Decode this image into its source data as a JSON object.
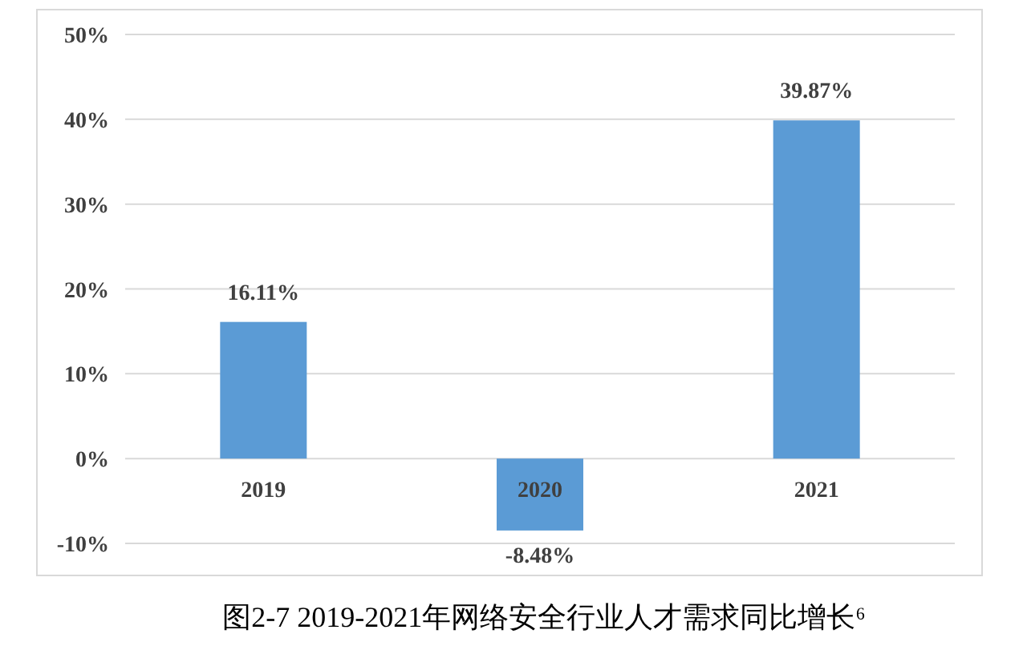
{
  "chart_data": {
    "type": "bar",
    "title": "图2-7 2019-2021年网络安全行业人才需求同比增长⁶",
    "categories": [
      "2019",
      "2020",
      "2021"
    ],
    "values": [
      16.11,
      -8.48,
      39.87
    ],
    "value_labels": [
      "16.11%",
      "-8.48%",
      "39.87%"
    ],
    "color": "#5b9bd5",
    "ylim": [
      -10,
      50
    ],
    "yticks": [
      {
        "value": -10,
        "label": "-10%"
      },
      {
        "value": 0,
        "label": "0%"
      },
      {
        "value": 10,
        "label": "10%"
      },
      {
        "value": 20,
        "label": "20%"
      },
      {
        "value": 30,
        "label": "30%"
      },
      {
        "value": 40,
        "label": "40%"
      },
      {
        "value": 50,
        "label": "50%"
      }
    ],
    "grid": "y"
  }
}
